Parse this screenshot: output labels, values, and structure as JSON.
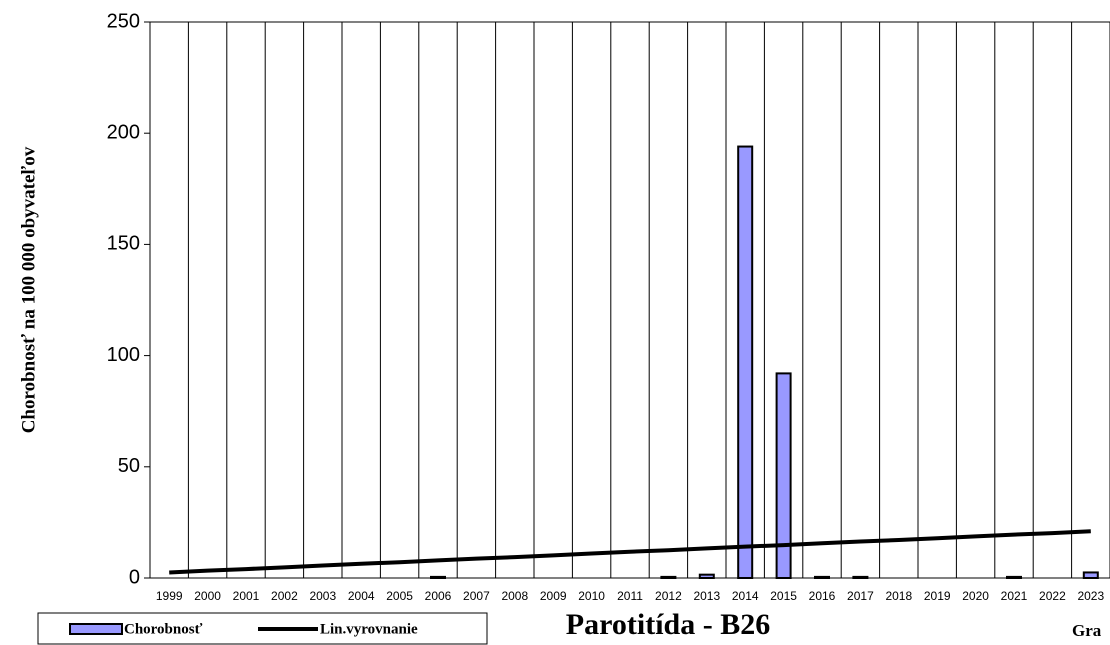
{
  "chart_data": {
    "type": "bar",
    "ylabel": "Chorobnosť na 100 000 obyvateľov",
    "title": "Parotitída - B26",
    "annotation": "Gra",
    "categories": [
      "1999",
      "2000",
      "2001",
      "2002",
      "2003",
      "2004",
      "2005",
      "2006",
      "2007",
      "2008",
      "2009",
      "2010",
      "2011",
      "2012",
      "2013",
      "2014",
      "2015",
      "2016",
      "2017",
      "2018",
      "2019",
      "2020",
      "2021",
      "2022",
      "2023"
    ],
    "series": [
      {
        "name": "Chorobnosť",
        "type": "bar",
        "color": "#9999ff",
        "values": [
          0,
          0,
          0,
          0,
          0,
          0,
          0,
          0.5,
          0,
          0,
          0,
          0,
          0,
          0.5,
          1.5,
          194,
          92,
          0.5,
          0.5,
          0,
          0,
          0,
          0.5,
          0,
          2.5
        ]
      },
      {
        "name": "Lin.vyrovnanie",
        "type": "line",
        "color": "#000000",
        "values": [
          2.5,
          3.3,
          4.0,
          4.8,
          5.6,
          6.4,
          7.1,
          7.9,
          8.7,
          9.4,
          10.2,
          11.0,
          11.8,
          12.5,
          13.3,
          14.1,
          14.8,
          15.6,
          16.4,
          17.1,
          17.9,
          18.7,
          19.5,
          20.2,
          21.0
        ]
      }
    ],
    "ylim": [
      0,
      250
    ],
    "yticks": [
      0,
      50,
      100,
      150,
      200,
      250
    ],
    "grid": true,
    "legend": "bottom-left"
  }
}
